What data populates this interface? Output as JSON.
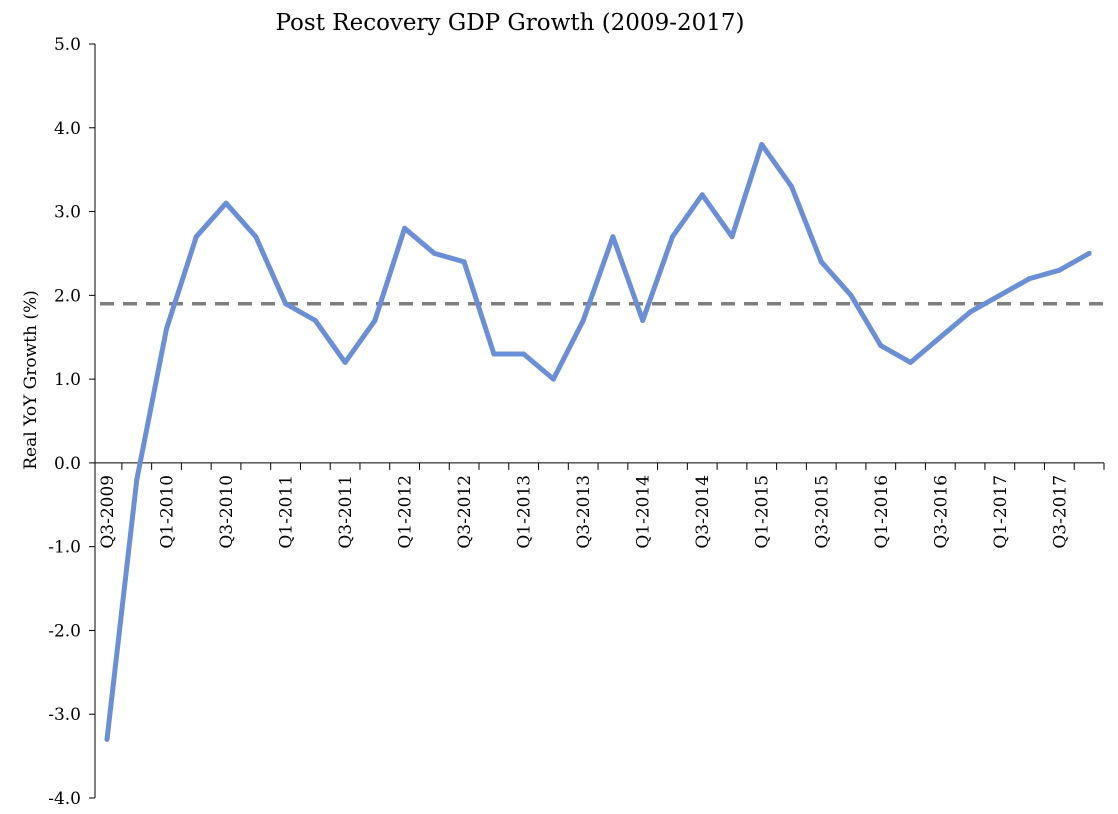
{
  "chart_data": {
    "type": "line",
    "title": "Post Recovery GDP Growth  (2009-2017)",
    "xlabel": "",
    "ylabel": "Real YoY Growth (%)",
    "ylim": [
      -4.0,
      5.0
    ],
    "yticks": [
      5.0,
      4.0,
      3.0,
      2.0,
      1.0,
      0.0,
      -1.0,
      -2.0,
      -3.0,
      -4.0
    ],
    "ytick_labels": [
      "5.0",
      "4.0",
      "3.0",
      "2.0",
      "1.0",
      "0.0",
      "-1.0",
      "-2.0",
      "-3.0",
      "-4.0"
    ],
    "x": [
      "Q3-2009",
      "Q4-2009",
      "Q1-2010",
      "Q2-2010",
      "Q3-2010",
      "Q4-2010",
      "Q1-2011",
      "Q2-2011",
      "Q3-2011",
      "Q4-2011",
      "Q1-2012",
      "Q2-2012",
      "Q3-2012",
      "Q4-2012",
      "Q1-2013",
      "Q2-2013",
      "Q3-2013",
      "Q4-2013",
      "Q1-2014",
      "Q2-2014",
      "Q3-2014",
      "Q4-2014",
      "Q1-2015",
      "Q2-2015",
      "Q3-2015",
      "Q4-2015",
      "Q1-2016",
      "Q2-2016",
      "Q3-2016",
      "Q4-2016",
      "Q1-2017",
      "Q2-2017",
      "Q3-2017",
      "Q4-2017"
    ],
    "xtick_labels": [
      "Q3-2009",
      "Q1-2010",
      "Q3-2010",
      "Q1-2011",
      "Q3-2011",
      "Q1-2012",
      "Q3-2012",
      "Q1-2013",
      "Q3-2013",
      "Q1-2014",
      "Q3-2014",
      "Q1-2015",
      "Q3-2015",
      "Q1-2016",
      "Q3-2016",
      "Q1-2017",
      "Q3-2017"
    ],
    "series": [
      {
        "values": [
          -3.3,
          -0.2,
          1.6,
          2.7,
          3.1,
          2.7,
          1.9,
          1.7,
          1.2,
          1.7,
          2.8,
          2.5,
          2.4,
          1.3,
          1.3,
          1.0,
          1.7,
          2.7,
          1.7,
          2.7,
          3.2,
          2.7,
          3.8,
          3.3,
          2.4,
          2.0,
          1.4,
          1.2,
          1.5,
          1.8,
          2.0,
          2.2,
          2.3,
          2.5
        ],
        "color": "#6b8fd6"
      }
    ],
    "reference_line": {
      "value": 1.9,
      "style": "dashed",
      "color": "#7f7f7f"
    },
    "grid": false,
    "legend": "none"
  }
}
